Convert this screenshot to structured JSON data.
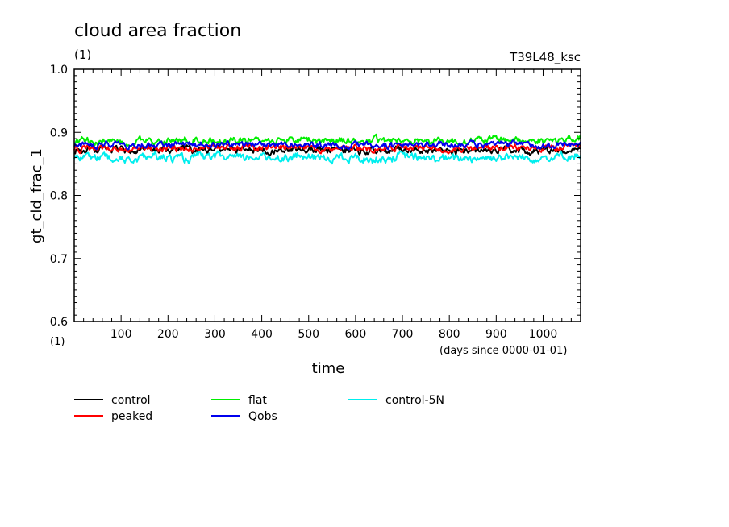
{
  "chart_data": {
    "type": "line",
    "title": "cloud area fraction",
    "title_unit": "(1)",
    "run_label": "T39L48_ksc",
    "ylabel": "gt_cld_frac_1",
    "yunit": "(1)",
    "xlabel": "time",
    "xunit": "(days since 0000-01-01)",
    "xlim": [
      0,
      1080
    ],
    "ylim": [
      0.6,
      1.0
    ],
    "xticks": [
      "100",
      "200",
      "300",
      "400",
      "500",
      "600",
      "700",
      "800",
      "900",
      "1000"
    ],
    "yticks": [
      "0.6",
      "0.7",
      "0.8",
      "0.9",
      "1.0"
    ],
    "grid": false,
    "legend_position": "bottom-left",
    "series": [
      {
        "name": "control",
        "color": "#000000",
        "x": [
          0,
          60,
          120,
          180,
          240,
          300,
          360,
          420,
          480,
          540,
          600,
          660,
          720,
          780,
          840,
          900,
          960,
          1020,
          1080
        ],
        "values": [
          0.872,
          0.873,
          0.871,
          0.872,
          0.872,
          0.874,
          0.873,
          0.872,
          0.874,
          0.872,
          0.872,
          0.871,
          0.873,
          0.872,
          0.871,
          0.872,
          0.872,
          0.871,
          0.873
        ]
      },
      {
        "name": "peaked",
        "color": "#ff0000",
        "x": [
          0,
          60,
          120,
          180,
          240,
          300,
          360,
          420,
          480,
          540,
          600,
          660,
          720,
          780,
          840,
          900,
          960,
          1020,
          1080
        ],
        "values": [
          0.874,
          0.875,
          0.874,
          0.875,
          0.874,
          0.877,
          0.876,
          0.875,
          0.876,
          0.873,
          0.875,
          0.874,
          0.875,
          0.874,
          0.874,
          0.875,
          0.875,
          0.874,
          0.876
        ]
      },
      {
        "name": "flat",
        "color": "#00ee00",
        "x": [
          0,
          60,
          120,
          180,
          240,
          300,
          360,
          420,
          480,
          540,
          600,
          660,
          720,
          780,
          840,
          900,
          960,
          1020,
          1080
        ],
        "values": [
          0.886,
          0.887,
          0.886,
          0.887,
          0.887,
          0.888,
          0.887,
          0.888,
          0.889,
          0.887,
          0.886,
          0.887,
          0.888,
          0.887,
          0.886,
          0.889,
          0.887,
          0.888,
          0.888
        ]
      },
      {
        "name": "Qobs",
        "color": "#0000ee",
        "x": [
          0,
          60,
          120,
          180,
          240,
          300,
          360,
          420,
          480,
          540,
          600,
          660,
          720,
          780,
          840,
          900,
          960,
          1020,
          1080
        ],
        "values": [
          0.879,
          0.88,
          0.879,
          0.88,
          0.88,
          0.881,
          0.88,
          0.88,
          0.881,
          0.879,
          0.879,
          0.88,
          0.88,
          0.881,
          0.88,
          0.88,
          0.881,
          0.88,
          0.88
        ]
      },
      {
        "name": "control-5N",
        "color": "#00eeee",
        "x": [
          0,
          60,
          120,
          180,
          240,
          300,
          360,
          420,
          480,
          540,
          600,
          660,
          720,
          780,
          840,
          900,
          960,
          1020,
          1080
        ],
        "values": [
          0.86,
          0.861,
          0.858,
          0.86,
          0.859,
          0.861,
          0.86,
          0.861,
          0.862,
          0.86,
          0.86,
          0.859,
          0.861,
          0.858,
          0.86,
          0.861,
          0.86,
          0.861,
          0.862
        ]
      }
    ]
  }
}
